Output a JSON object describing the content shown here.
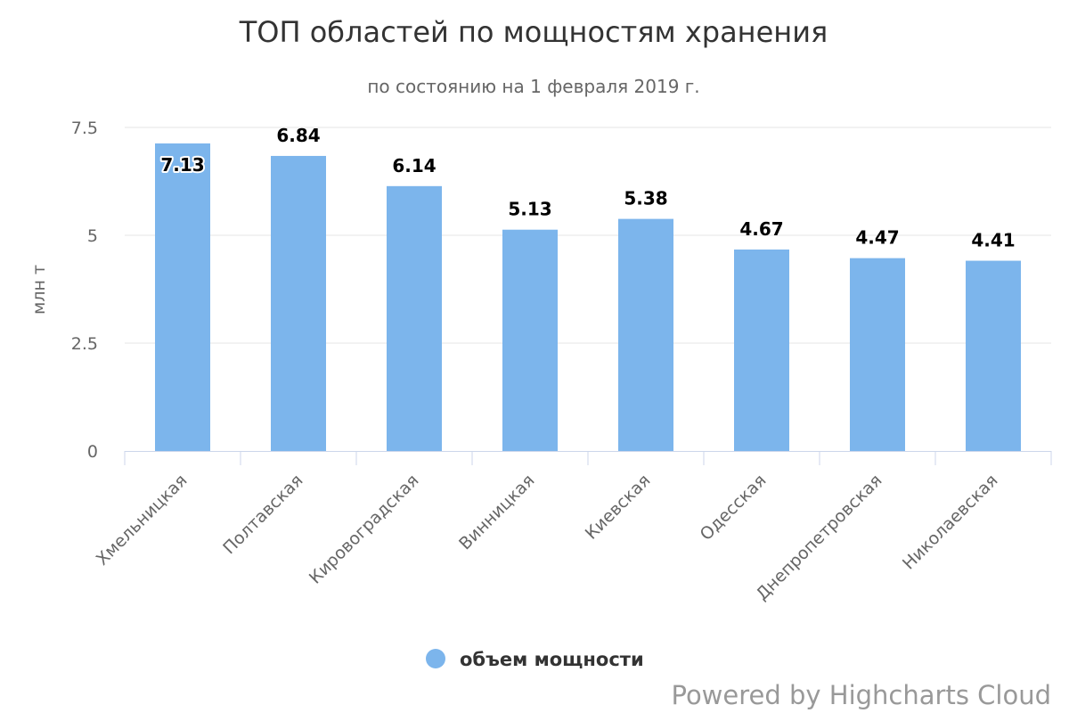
{
  "chart_data": {
    "type": "bar",
    "title": "ТОП областей по мощностям хранения",
    "subtitle": "по состоянию на 1 февраля 2019 г.",
    "xlabel": "",
    "ylabel": "млн т",
    "ylim": [
      0,
      7.5
    ],
    "yticks": [
      "0",
      "2.5",
      "5",
      "7.5"
    ],
    "grid": true,
    "legend_position": "bottom-center",
    "categories": [
      "Хмельницкая",
      "Полтавская",
      "Кировоградская",
      "Винницкая",
      "Киевская",
      "Одесская",
      "Днепропетровская",
      "Николаевская"
    ],
    "series": [
      {
        "name": "объем мощности",
        "color": "#7cb5ec",
        "values": [
          7.13,
          6.84,
          6.14,
          5.13,
          5.38,
          4.67,
          4.47,
          4.41
        ]
      }
    ]
  },
  "credits": "Powered by Highcharts Cloud"
}
